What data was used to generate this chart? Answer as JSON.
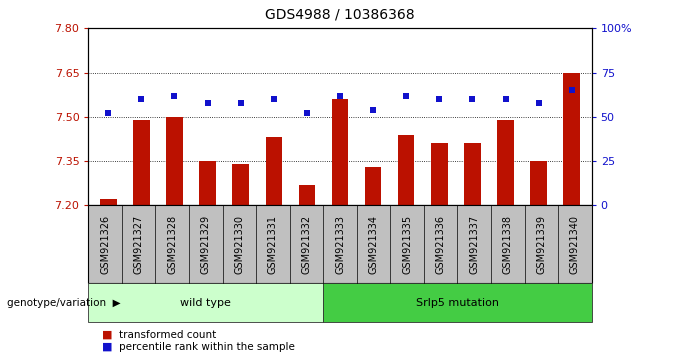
{
  "title": "GDS4988 / 10386368",
  "samples": [
    "GSM921326",
    "GSM921327",
    "GSM921328",
    "GSM921329",
    "GSM921330",
    "GSM921331",
    "GSM921332",
    "GSM921333",
    "GSM921334",
    "GSM921335",
    "GSM921336",
    "GSM921337",
    "GSM921338",
    "GSM921339",
    "GSM921340"
  ],
  "bar_values": [
    7.22,
    7.49,
    7.5,
    7.35,
    7.34,
    7.43,
    7.27,
    7.56,
    7.33,
    7.44,
    7.41,
    7.41,
    7.49,
    7.35,
    7.65
  ],
  "dot_values": [
    52,
    60,
    62,
    58,
    58,
    60,
    52,
    62,
    54,
    62,
    60,
    60,
    60,
    58,
    65
  ],
  "ymin": 7.2,
  "ymax": 7.8,
  "yticks": [
    7.2,
    7.35,
    7.5,
    7.65,
    7.8
  ],
  "y2min": 0,
  "y2max": 100,
  "y2ticks": [
    0,
    25,
    50,
    75,
    100
  ],
  "y2tick_labels": [
    "0",
    "25",
    "50",
    "75",
    "100%"
  ],
  "bar_color": "#bb1100",
  "dot_color": "#1111cc",
  "wild_type_label": "wild type",
  "mutation_label": "Srlp5 mutation",
  "genotype_label": "genotype/variation",
  "legend_bar": "transformed count",
  "legend_dot": "percentile rank within the sample",
  "wt_color": "#ccffcc",
  "mut_color": "#44cc44",
  "xtick_bg": "#c0c0c0",
  "title_fontsize": 10,
  "tick_fontsize": 7,
  "bar_width": 0.5
}
